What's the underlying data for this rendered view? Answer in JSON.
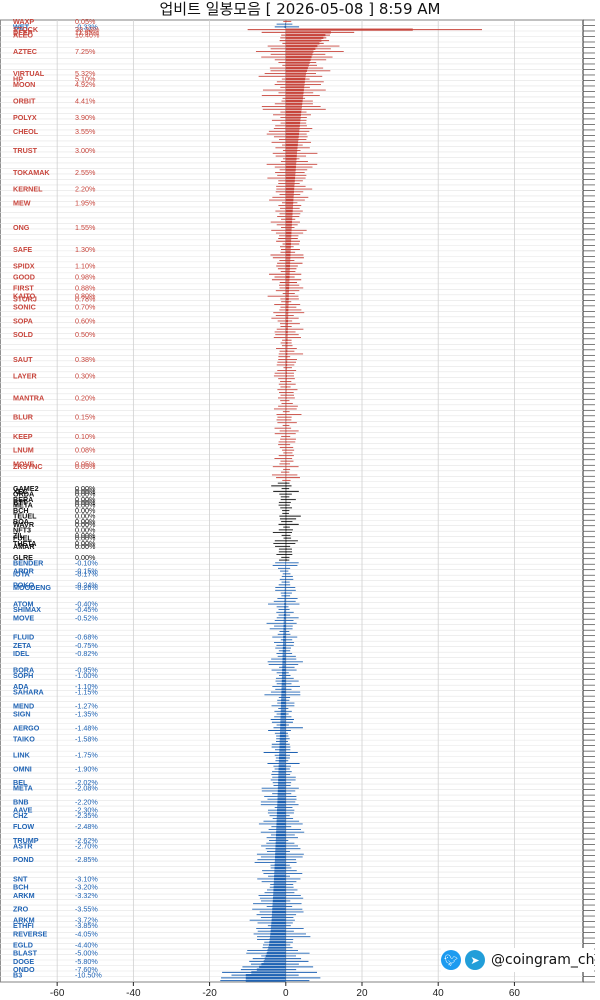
{
  "title": "업비트 일봉모음 [ 2026-05-08 ]  8:59 AM",
  "brand": {
    "handle": "@coingram_ch",
    "icons": [
      "twitter-icon",
      "telegram-icon"
    ]
  },
  "colors": {
    "up": "#c8453c",
    "flat": "#111111",
    "down": "#1f63b4",
    "grid": "#e4e4e4"
  },
  "chart_data": {
    "type": "bar",
    "orientation": "horizontal",
    "xlim": [
      -75,
      78
    ],
    "xticks": [
      -60,
      -40,
      -20,
      0,
      20,
      40,
      60
    ],
    "grid": true,
    "visible_labels": [
      {
        "row": 0,
        "symbol": "WAXP",
        "pct": "0.05%"
      },
      {
        "row": 2,
        "symbol": "WET",
        "pct": "-0.33%"
      },
      {
        "row": 3,
        "symbol": "STOCK",
        "pct": "33.33%"
      },
      {
        "row": 4,
        "symbol": "DEEP",
        "pct": "11.85%"
      },
      {
        "row": 5,
        "symbol": "ALEO",
        "pct": "10.40%"
      },
      {
        "row": 11,
        "symbol": "AZTEC",
        "pct": "7.25%"
      },
      {
        "row": 19,
        "symbol": "VIRTUAL",
        "pct": "5.32%"
      },
      {
        "row": 21,
        "symbol": "HP",
        "pct": "5.10%"
      },
      {
        "row": 23,
        "symbol": "MOON",
        "pct": "4.92%"
      },
      {
        "row": 29,
        "symbol": "ORBIT",
        "pct": "4.41%"
      },
      {
        "row": 35,
        "symbol": "POLYX",
        "pct": "3.90%"
      },
      {
        "row": 40,
        "symbol": "CHEOL",
        "pct": "3.55%"
      },
      {
        "row": 47,
        "symbol": "TRUST",
        "pct": "3.00%"
      },
      {
        "row": 55,
        "symbol": "TOKAMAK",
        "pct": "2.55%"
      },
      {
        "row": 61,
        "symbol": "KERNEL",
        "pct": "2.20%"
      },
      {
        "row": 66,
        "symbol": "MEW",
        "pct": "1.95%"
      },
      {
        "row": 75,
        "symbol": "ONG",
        "pct": "1.55%"
      },
      {
        "row": 83,
        "symbol": "SAFE",
        "pct": "1.30%"
      },
      {
        "row": 89,
        "symbol": "SPIDX",
        "pct": "1.10%"
      },
      {
        "row": 93,
        "symbol": "GOOD",
        "pct": "0.98%"
      },
      {
        "row": 97,
        "symbol": "FIRST",
        "pct": "0.88%"
      },
      {
        "row": 100,
        "symbol": "KAITO",
        "pct": "0.80%"
      },
      {
        "row": 101,
        "symbol": "STORJ",
        "pct": "0.78%"
      },
      {
        "row": 104,
        "symbol": "SONIC",
        "pct": "0.70%"
      },
      {
        "row": 109,
        "symbol": "SOPA",
        "pct": "0.60%"
      },
      {
        "row": 114,
        "symbol": "SOLD",
        "pct": "0.50%"
      },
      {
        "row": 123,
        "symbol": "SAUT",
        "pct": "0.38%"
      },
      {
        "row": 129,
        "symbol": "LAYER",
        "pct": "0.30%"
      },
      {
        "row": 137,
        "symbol": "MANTRA",
        "pct": "0.20%"
      },
      {
        "row": 144,
        "symbol": "BLUR",
        "pct": "0.15%"
      },
      {
        "row": 151,
        "symbol": "KEEP",
        "pct": "0.10%"
      },
      {
        "row": 156,
        "symbol": "LNUM",
        "pct": "0.08%"
      },
      {
        "row": 161,
        "symbol": "MOVE",
        "pct": "0.05%"
      },
      {
        "row": 162,
        "symbol": "ZKSYNC",
        "pct": "0.05%"
      },
      {
        "row": 170,
        "symbol": "GAME2",
        "pct": "0.00%"
      },
      {
        "row": 171,
        "symbol": "XEC",
        "pct": "0.00%"
      },
      {
        "row": 172,
        "symbol": "ORDA",
        "pct": "0.00%"
      },
      {
        "row": 174,
        "symbol": "BERA",
        "pct": "0.00%"
      },
      {
        "row": 175,
        "symbol": "BTT",
        "pct": "0.00%"
      },
      {
        "row": 176,
        "symbol": "META",
        "pct": "0.00%"
      },
      {
        "row": 178,
        "symbol": "BCH",
        "pct": "0.00%"
      },
      {
        "row": 180,
        "symbol": "TEUEL",
        "pct": "0.00%"
      },
      {
        "row": 182,
        "symbol": "BOA",
        "pct": "0.00%"
      },
      {
        "row": 183,
        "symbol": "WAVR",
        "pct": "0.00%"
      },
      {
        "row": 185,
        "symbol": "NFT3",
        "pct": "0.00%"
      },
      {
        "row": 187,
        "symbol": "ZIL",
        "pct": "0.00%"
      },
      {
        "row": 188,
        "symbol": "FUEL",
        "pct": "0.00%"
      },
      {
        "row": 190,
        "symbol": "THETA",
        "pct": "0.00%"
      },
      {
        "row": 191,
        "symbol": "AMAR",
        "pct": "0.00%"
      },
      {
        "row": 195,
        "symbol": "GLRE",
        "pct": "0.00%"
      },
      {
        "row": 197,
        "symbol": "BENDER",
        "pct": "-0.10%"
      },
      {
        "row": 200,
        "symbol": "ARDR",
        "pct": "-0.15%"
      },
      {
        "row": 201,
        "symbol": "IOTA",
        "pct": "-0.17%"
      },
      {
        "row": 205,
        "symbol": "POKO",
        "pct": "-0.24%"
      },
      {
        "row": 206,
        "symbol": "MOODENG",
        "pct": "-0.26%"
      },
      {
        "row": 212,
        "symbol": "ATOM",
        "pct": "-0.40%"
      },
      {
        "row": 214,
        "symbol": "SHIMAX",
        "pct": "-0.45%"
      },
      {
        "row": 217,
        "symbol": "MOVE",
        "pct": "-0.52%"
      },
      {
        "row": 224,
        "symbol": "FLUID",
        "pct": "-0.68%"
      },
      {
        "row": 227,
        "symbol": "ZETA",
        "pct": "-0.75%"
      },
      {
        "row": 230,
        "symbol": "IDEL",
        "pct": "-0.82%"
      },
      {
        "row": 236,
        "symbol": "BORA",
        "pct": "-0.95%"
      },
      {
        "row": 238,
        "symbol": "SOPH",
        "pct": "-1.00%"
      },
      {
        "row": 242,
        "symbol": "ADA",
        "pct": "-1.10%"
      },
      {
        "row": 244,
        "symbol": "SAHARA",
        "pct": "-1.15%"
      },
      {
        "row": 249,
        "symbol": "MEND",
        "pct": "-1.27%"
      },
      {
        "row": 252,
        "symbol": "SIGN",
        "pct": "-1.35%"
      },
      {
        "row": 257,
        "symbol": "AERGO",
        "pct": "-1.48%"
      },
      {
        "row": 261,
        "symbol": "TAIKO",
        "pct": "-1.58%"
      },
      {
        "row": 267,
        "symbol": "LINK",
        "pct": "-1.75%"
      },
      {
        "row": 272,
        "symbol": "OMNI",
        "pct": "-1.90%"
      },
      {
        "row": 277,
        "symbol": "BEL",
        "pct": "-2.02%"
      },
      {
        "row": 279,
        "symbol": "META",
        "pct": "-2.08%"
      },
      {
        "row": 284,
        "symbol": "BNB",
        "pct": "-2.20%"
      },
      {
        "row": 287,
        "symbol": "AAVE",
        "pct": "-2.30%"
      },
      {
        "row": 289,
        "symbol": "CHZ",
        "pct": "-2.35%"
      },
      {
        "row": 293,
        "symbol": "FLOW",
        "pct": "-2.48%"
      },
      {
        "row": 298,
        "symbol": "TRUMP",
        "pct": "-2.62%"
      },
      {
        "row": 300,
        "symbol": "ASTR",
        "pct": "-2.70%"
      },
      {
        "row": 305,
        "symbol": "POND",
        "pct": "-2.85%"
      },
      {
        "row": 312,
        "symbol": "SNT",
        "pct": "-3.10%"
      },
      {
        "row": 315,
        "symbol": "BCH",
        "pct": "-3.20%"
      },
      {
        "row": 318,
        "symbol": "ARKM",
        "pct": "-3.32%"
      },
      {
        "row": 323,
        "symbol": "ZRO",
        "pct": "-3.55%"
      },
      {
        "row": 327,
        "symbol": "ARKM",
        "pct": "-3.72%"
      },
      {
        "row": 329,
        "symbol": "ETHFI",
        "pct": "-3.85%"
      },
      {
        "row": 332,
        "symbol": "REVERSE",
        "pct": "-4.05%"
      },
      {
        "row": 336,
        "symbol": "EGLD",
        "pct": "-4.40%"
      },
      {
        "row": 339,
        "symbol": "BLAST",
        "pct": "-5.00%"
      },
      {
        "row": 342,
        "symbol": "DOGE",
        "pct": "-5.80%"
      },
      {
        "row": 345,
        "symbol": "ONDO",
        "pct": "-7.60%"
      },
      {
        "row": 347,
        "symbol": "B3",
        "pct": "-10.50%"
      }
    ]
  }
}
